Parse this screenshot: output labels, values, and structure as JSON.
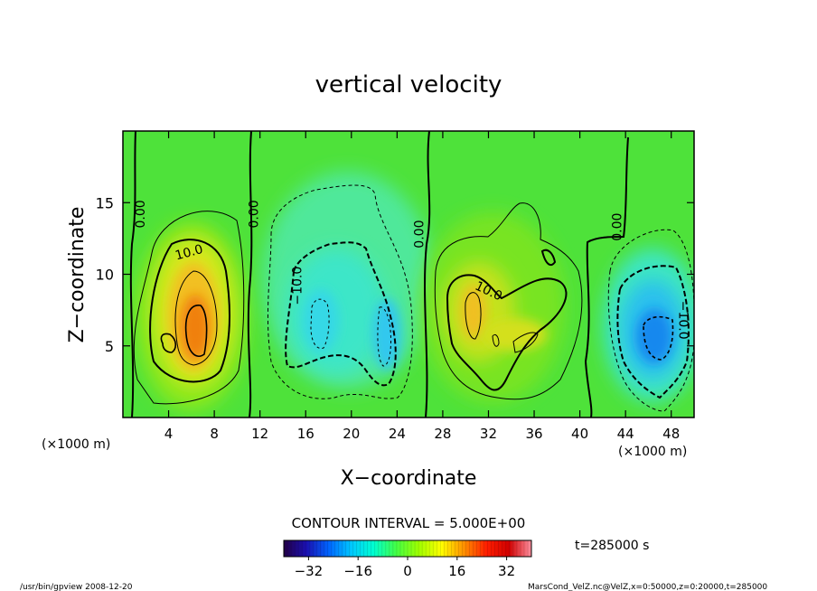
{
  "chart_data": {
    "type": "heatmap",
    "title": "vertical velocity",
    "xlabel": "X−coordinate",
    "ylabel": "Z−coordinate",
    "x_unit_left": "(×1000 m)",
    "x_unit_right": "(×1000 m)",
    "xlim": [
      0,
      50
    ],
    "ylim": [
      0,
      20
    ],
    "x_ticks": [
      4,
      8,
      12,
      16,
      20,
      24,
      28,
      32,
      36,
      40,
      44,
      48
    ],
    "y_ticks": [
      5,
      10,
      15
    ],
    "contour_interval_label": "CONTOUR INTERVAL = 5.000E+00",
    "time_label": "t=285000 s",
    "colorbar": {
      "min": -40,
      "max": 40,
      "ticks": [
        -32,
        -16,
        0,
        16,
        32
      ],
      "tick_labels": [
        "−32",
        "−16",
        "0",
        "16",
        "32"
      ],
      "colors": [
        "#230046",
        "#1a10b0",
        "#0064ff",
        "#00c8ff",
        "#00ffd0",
        "#44ff44",
        "#a0ff00",
        "#ffff00",
        "#ff9000",
        "#ff1e00",
        "#d00000",
        "#ff90a0"
      ]
    },
    "contour_labels": [
      {
        "text": "0.00",
        "x": 1.6,
        "z": 14.2,
        "rotate": -90
      },
      {
        "text": "0.00",
        "x": 11.5,
        "z": 14.2,
        "rotate": -90
      },
      {
        "text": "0.00",
        "x": 26.0,
        "z": 12.8,
        "rotate": -90
      },
      {
        "text": "0.00",
        "x": 43.3,
        "z": 13.3,
        "rotate": -90
      },
      {
        "text": "10.0",
        "x": 5.8,
        "z": 11.5,
        "rotate": -15
      },
      {
        "text": "−10.0",
        "x": 15.3,
        "z": 9.2,
        "rotate": -90
      },
      {
        "text": "10.0",
        "x": 32.0,
        "z": 8.8,
        "rotate": 25
      },
      {
        "text": "−10.0",
        "x": 49.0,
        "z": 6.8,
        "rotate": 90
      }
    ],
    "features": [
      {
        "name": "updraft-west",
        "x": 6.0,
        "z": 6.8,
        "peak": 25
      },
      {
        "name": "downdraft-center",
        "x": 19.5,
        "z": 6.8,
        "peak": -14
      },
      {
        "name": "updraft-east",
        "x": 31.5,
        "z": 7.0,
        "peak": 18
      },
      {
        "name": "downdraft-east",
        "x": 47.0,
        "z": 5.8,
        "peak": -24
      }
    ]
  },
  "footer": {
    "left": "/usr/bin/gpview  2008-12-20",
    "right": "MarsCond_VelZ.nc@VelZ,x=0:50000,z=0:20000,t=285000"
  }
}
